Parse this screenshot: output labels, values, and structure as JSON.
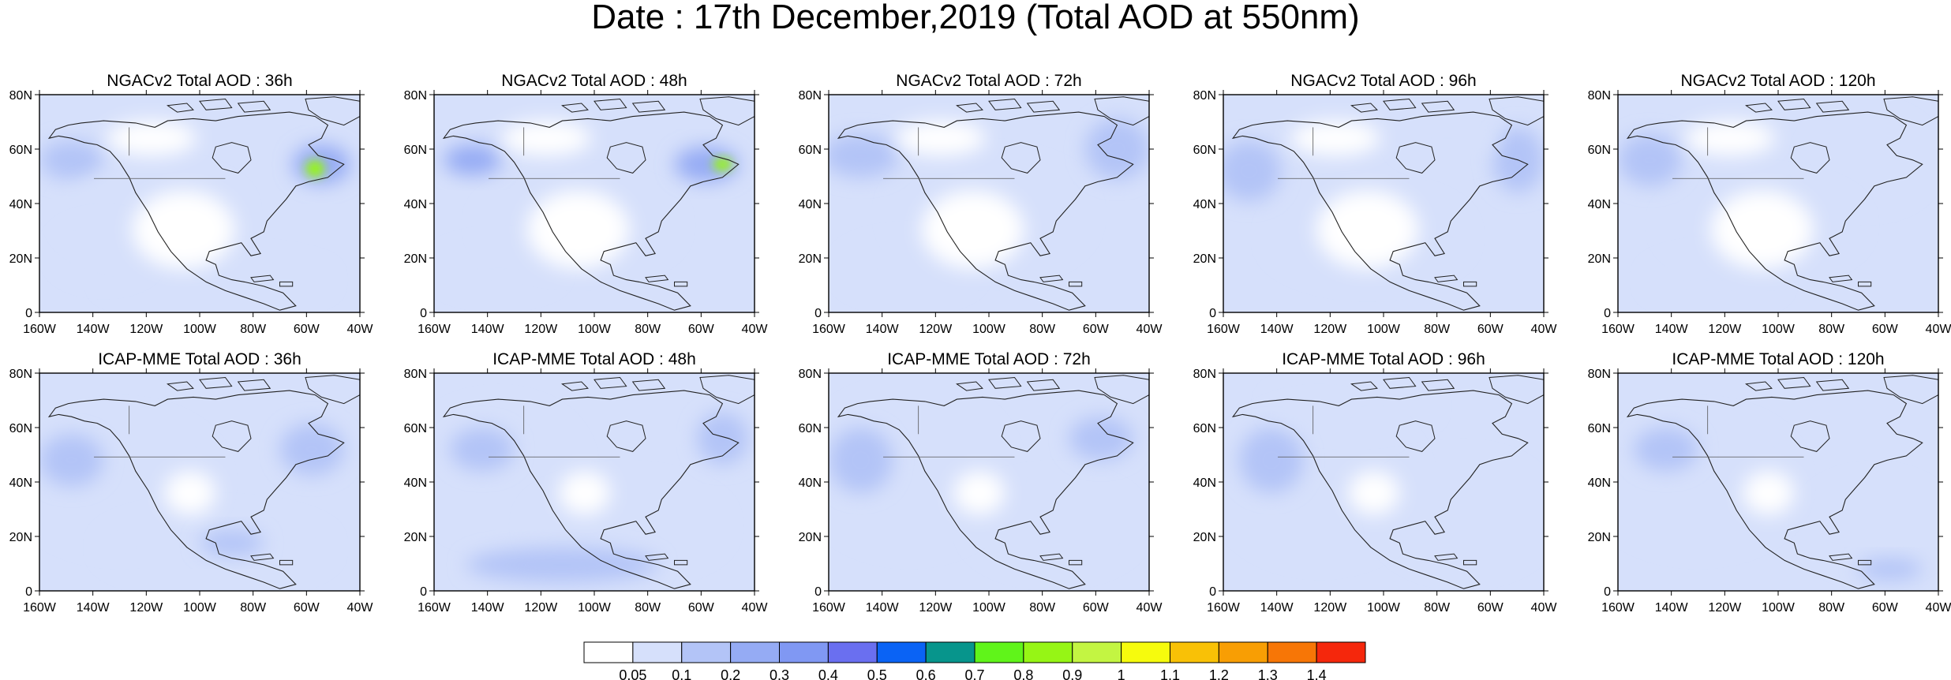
{
  "title": "Date : 17th December,2019 (Total AOD at 550nm)",
  "lon_ticks": [
    "160W",
    "140W",
    "120W",
    "100W",
    "80W",
    "60W",
    "40W"
  ],
  "lat_ticks": [
    "80N",
    "60N",
    "40N",
    "20N",
    "0"
  ],
  "panels": [
    {
      "title": "NGACv2 Total AOD : 36h"
    },
    {
      "title": "NGACv2 Total AOD : 48h"
    },
    {
      "title": "NGACv2 Total AOD : 72h"
    },
    {
      "title": "NGACv2 Total AOD : 96h"
    },
    {
      "title": "NGACv2 Total AOD : 120h"
    },
    {
      "title": "ICAP-MME Total AOD : 36h"
    },
    {
      "title": "ICAP-MME Total AOD : 48h"
    },
    {
      "title": "ICAP-MME Total AOD : 72h"
    },
    {
      "title": "ICAP-MME Total AOD : 96h"
    },
    {
      "title": "ICAP-MME Total AOD : 120h"
    }
  ],
  "colorbar": {
    "labels": [
      "0.05",
      "0.1",
      "0.2",
      "0.3",
      "0.4",
      "0.5",
      "0.6",
      "0.7",
      "0.8",
      "0.9",
      "1",
      "1.1",
      "1.2",
      "1.3",
      "1.4"
    ],
    "colors": [
      "#ffffff",
      "#d6e0fb",
      "#b3c4f7",
      "#95abf4",
      "#8098f3",
      "#6a6ff0",
      "#0a63f5",
      "#07958c",
      "#60f41a",
      "#96f515",
      "#c3f542",
      "#f6fb0d",
      "#f9c106",
      "#f89e04",
      "#f77606",
      "#f5270c"
    ]
  }
}
